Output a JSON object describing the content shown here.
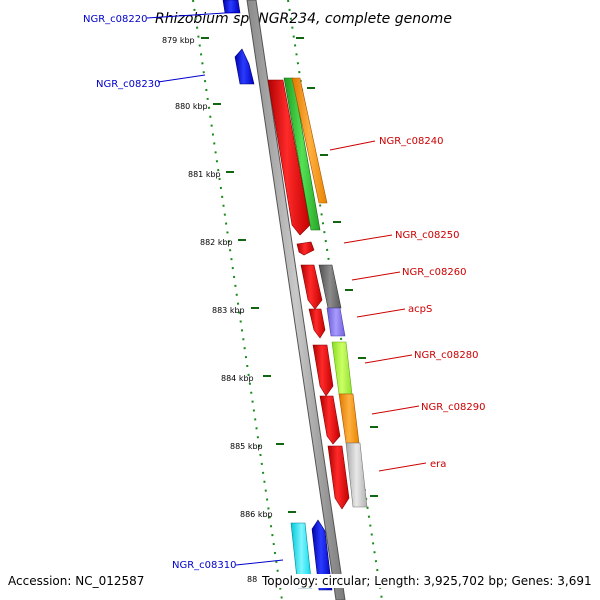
{
  "title": "Rhizobium sp. NGR234, complete genome",
  "ticks": [
    "879 kbp",
    "880 kbp",
    "881 kbp",
    "882 kbp",
    "883 kbp",
    "884 kbp",
    "885 kbp",
    "886 kbp",
    "88"
  ],
  "blue_genes": [
    "NGR_c08220",
    "NGR_c08230",
    "NGR_c08310"
  ],
  "red_genes": [
    "NGR_c08240",
    "NGR_c08250",
    "NGR_c08260",
    "acpS",
    "NGR_c08280",
    "NGR_c08290",
    "era"
  ],
  "footer": {
    "accession": "Accession: NC_012587",
    "topology": "Topology: circular; Length: 3,925,702 bp; Genes: 3,691"
  },
  "colors": {
    "forward_strand": "#0000ee",
    "reverse_strand": "#ee0000",
    "tick": "#006600"
  }
}
